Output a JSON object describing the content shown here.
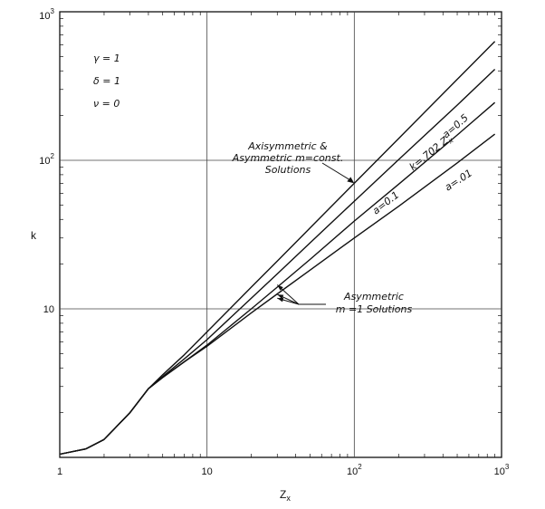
{
  "chart_data": {
    "type": "line",
    "xscale": "log",
    "yscale": "log",
    "xlim": [
      1,
      1000
    ],
    "ylim": [
      1,
      1000
    ],
    "grid": true,
    "xlabel": "Z",
    "xlabel_sub": "x",
    "ylabel": "k",
    "x_ticks": [
      {
        "value": 1,
        "base": "1",
        "exp": ""
      },
      {
        "value": 10,
        "base": "10",
        "exp": ""
      },
      {
        "value": 100,
        "base": "10",
        "exp": "2"
      },
      {
        "value": 1000,
        "base": "10",
        "exp": "3"
      }
    ],
    "y_ticks": [
      {
        "value": 10,
        "base": "10",
        "exp": ""
      },
      {
        "value": 100,
        "base": "10",
        "exp": "2"
      },
      {
        "value": 1000,
        "base": "10",
        "exp": "3"
      }
    ],
    "parameters": [
      "γ = 1",
      "δ = 1",
      "ν = 0"
    ],
    "series": [
      {
        "name": "k = .702 Zx",
        "x": [
          1,
          1.5,
          2,
          3,
          4,
          5,
          7,
          10,
          20,
          30,
          50,
          100,
          200,
          500,
          900
        ],
        "y": [
          1.05,
          1.14,
          1.32,
          2.0,
          2.9,
          3.6,
          4.9,
          7.0,
          14.0,
          21.0,
          35.0,
          70.0,
          140.0,
          351.0,
          632.0
        ]
      },
      {
        "name": "a = 0.5",
        "x": [
          1,
          1.5,
          2,
          3,
          4,
          5,
          7,
          10,
          20,
          30,
          50,
          100,
          200,
          500,
          900
        ],
        "y": [
          1.05,
          1.14,
          1.32,
          2.0,
          2.9,
          3.5,
          4.6,
          6.2,
          11.8,
          17.2,
          27.8,
          53.0,
          101.0,
          235.0,
          410.0
        ]
      },
      {
        "name": "a = 0.1",
        "x": [
          1,
          1.5,
          2,
          3,
          4,
          5,
          7,
          10,
          20,
          30,
          50,
          100,
          200,
          500,
          900
        ],
        "y": [
          1.05,
          1.14,
          1.32,
          2.0,
          2.9,
          3.45,
          4.4,
          5.7,
          10.0,
          14.0,
          21.5,
          39.0,
          69.0,
          148.0,
          245.0
        ]
      },
      {
        "name": "a = .01",
        "x": [
          1,
          1.5,
          2,
          3,
          4,
          5,
          7,
          10,
          20,
          30,
          50,
          100,
          200,
          500,
          900
        ],
        "y": [
          1.05,
          1.14,
          1.32,
          2.0,
          2.9,
          3.45,
          4.4,
          5.6,
          9.4,
          12.6,
          18.2,
          30.0,
          49.0,
          96.0,
          150.0
        ]
      }
    ],
    "curve_labels": [
      {
        "text": "k=.702 Z",
        "sub": "x",
        "at": [
          250,
          85
        ],
        "angle": -39
      },
      {
        "text": "a=0.5",
        "at": [
          420,
          140
        ],
        "angle": -41
      },
      {
        "text": "a=0.1",
        "at": [
          140,
          43
        ],
        "angle": -38
      },
      {
        "text": "a=.01",
        "at": [
          430,
          62
        ],
        "angle": -33
      }
    ],
    "annotations": [
      {
        "name": "axisymmetric",
        "lines": [
          "Axisymmetric &",
          "Asymmetric m=const.",
          "Solutions"
        ],
        "arrow_to": [
          100,
          70
        ]
      },
      {
        "name": "asymmetric-m1",
        "lines": [
          "Asymmetric",
          "m =1 Solutions"
        ],
        "arrow_to": [
          [
            30,
            14.5
          ],
          [
            30,
            12.5
          ],
          [
            30,
            11.8
          ]
        ]
      }
    ]
  }
}
